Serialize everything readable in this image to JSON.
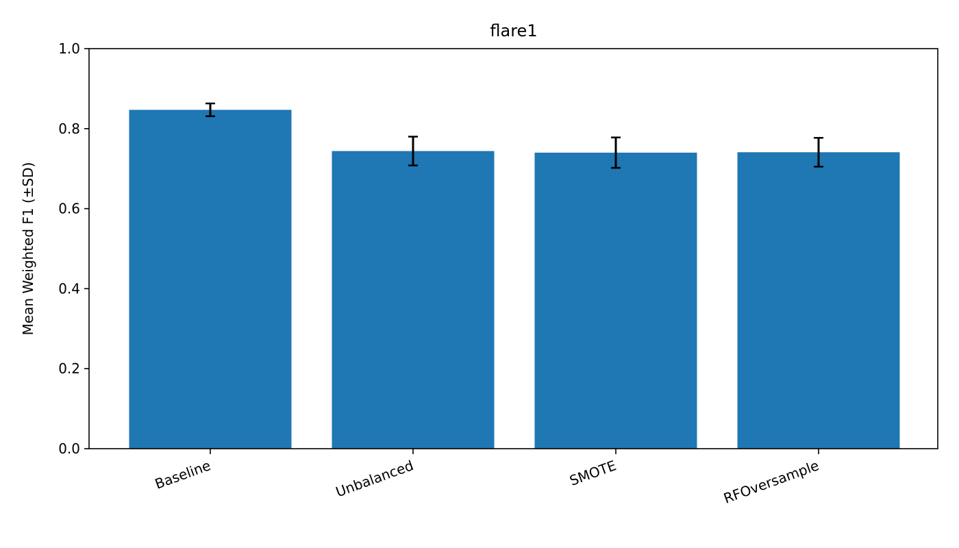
{
  "chart_data": {
    "type": "bar",
    "title": "flare1",
    "xlabel": "",
    "ylabel": "Mean Weighted F1 (±SD)",
    "categories": [
      "Baseline",
      "Unbalanced",
      "SMOTE",
      "RFOversample"
    ],
    "values": [
      0.847,
      0.744,
      0.74,
      0.741
    ],
    "errors": [
      0.016,
      0.036,
      0.038,
      0.036
    ],
    "ylim": [
      0,
      1.0
    ],
    "yticks": [
      "0.0",
      "0.2",
      "0.4",
      "0.6",
      "0.8",
      "1.0"
    ],
    "bar_color": "#1f77b4",
    "error_color": "#000000",
    "grid": false
  }
}
